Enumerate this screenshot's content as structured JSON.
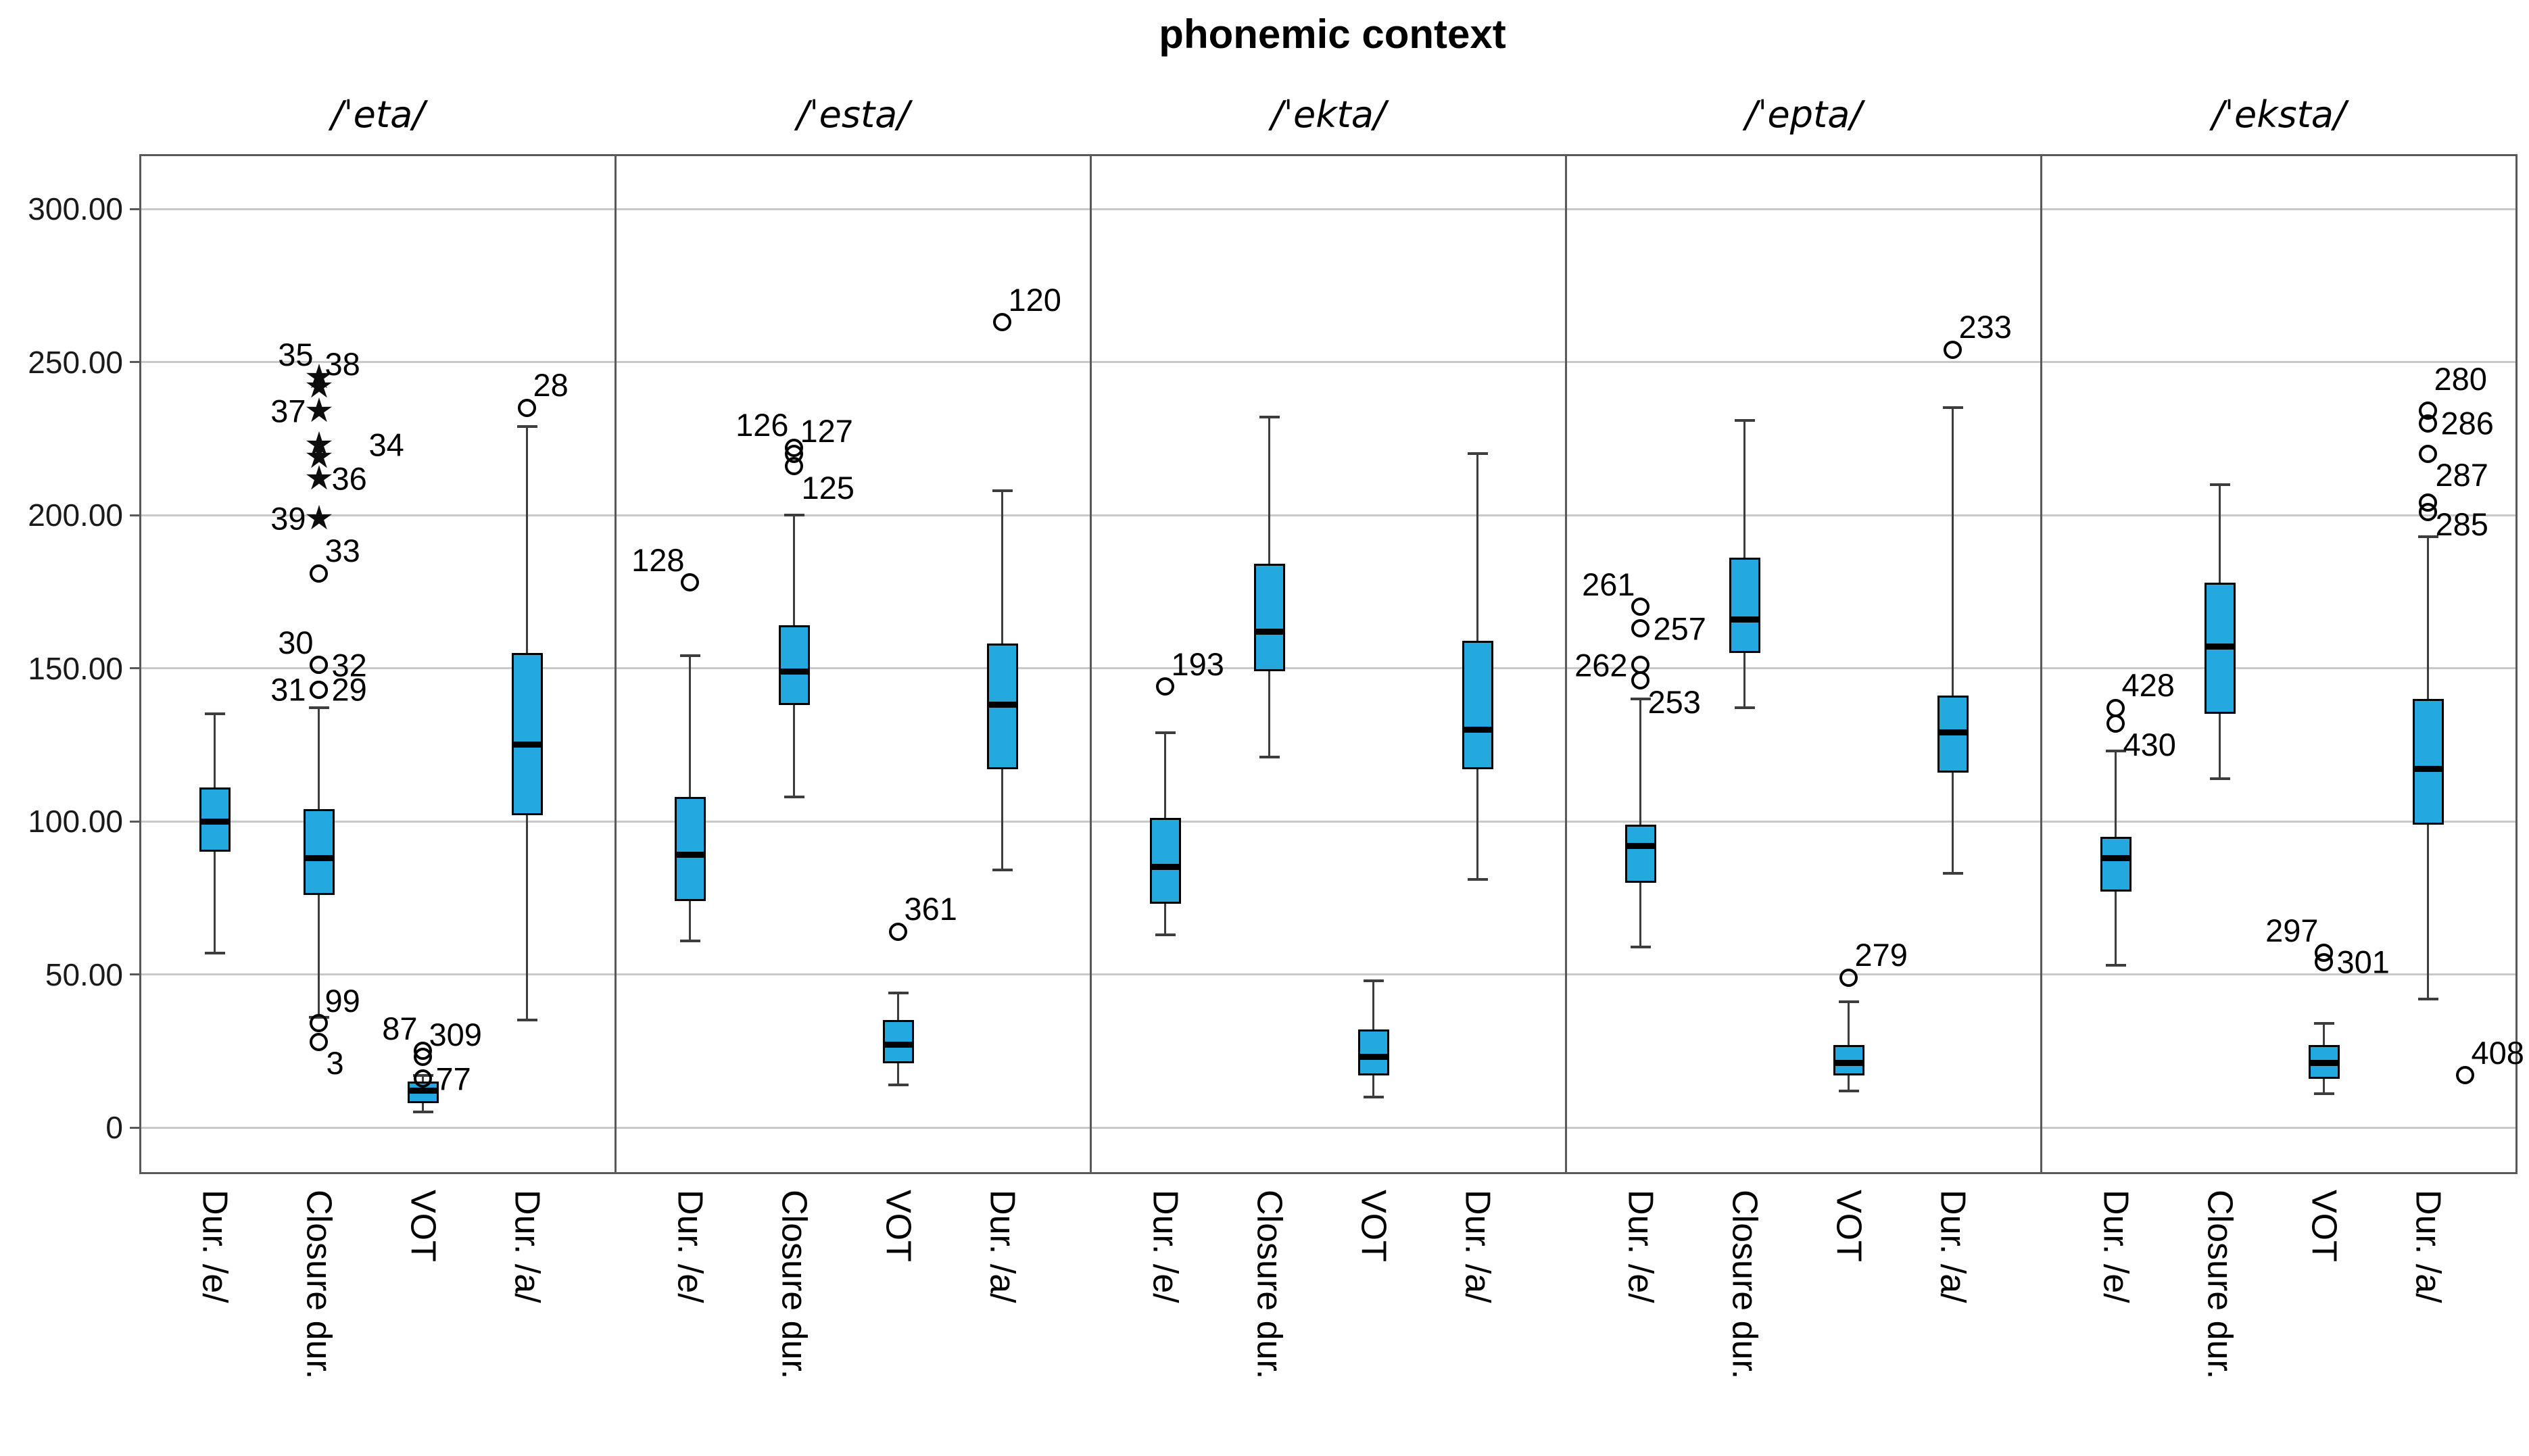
{
  "title": "phonemic context",
  "colors": {
    "box_fill": "#23A8E0",
    "box_border": "#000000",
    "median": "#000000",
    "whisker": "#3d3d3d",
    "gridline": "#c9c9c9",
    "panel_border": "#595959",
    "text": "#000000"
  },
  "chart_data": {
    "type": "boxplot",
    "title": "phonemic context",
    "subtitle": "",
    "legend_position": "none",
    "grid": "horizontal",
    "ylim": [
      -15,
      318
    ],
    "y_axis": {
      "tick_labels": [
        "300.00",
        "250.00",
        "200.00",
        "150.00",
        "100.00",
        "50.00",
        "0"
      ],
      "tick_values": [
        300,
        250,
        200,
        150,
        100,
        50,
        0
      ]
    },
    "categories": [
      "Dur. /e/",
      "Closure dur.",
      "VOT",
      "Dur. /a/"
    ],
    "panels": [
      {
        "name": "/ˈeta/",
        "boxes": [
          {
            "category": "Dur. /e/",
            "low": 57,
            "q1": 90,
            "median": 100,
            "q3": 111,
            "high": 135,
            "outliers": []
          },
          {
            "category": "Closure dur.",
            "low": 36,
            "q1": 76,
            "median": 88,
            "q3": 104,
            "high": 137,
            "outliers": [
              {
                "value": 245,
                "label": "35",
                "marker": "star",
                "pos": "al"
              },
              {
                "value": 242,
                "label": "38",
                "marker": "star",
                "pos": "ar"
              },
              {
                "value": 234,
                "label": "37",
                "marker": "star",
                "pos": "l"
              },
              {
                "value": 223,
                "label": "34",
                "marker": "star",
                "pos": "r",
                "dx_label": 55
              },
              {
                "value": 219,
                "label": "",
                "marker": "star",
                "pos": "r"
              },
              {
                "value": 212,
                "label": "36",
                "marker": "star",
                "pos": "r"
              },
              {
                "value": 199,
                "label": "39",
                "marker": "star",
                "pos": "l"
              },
              {
                "value": 181,
                "label": "33",
                "marker": "circle",
                "pos": "ar"
              },
              {
                "value": 151,
                "label": "30",
                "marker": "circle",
                "pos": "al"
              },
              {
                "value": 151,
                "label": "32",
                "marker": "circle",
                "pos": "r"
              },
              {
                "value": 143,
                "label": "31",
                "marker": "circle",
                "pos": "l"
              },
              {
                "value": 143,
                "label": "29",
                "marker": "circle",
                "pos": "r"
              },
              {
                "value": 34,
                "label": "99",
                "marker": "circle",
                "pos": "ar"
              },
              {
                "value": 28,
                "label": "3",
                "marker": "circle",
                "pos": "br"
              }
            ]
          },
          {
            "category": "VOT",
            "low": 5,
            "q1": 8,
            "median": 12,
            "q3": 15,
            "high": 17,
            "outliers": [
              {
                "value": 25,
                "label": "87",
                "marker": "circle",
                "pos": "al"
              },
              {
                "value": 23,
                "label": "309",
                "marker": "circle",
                "pos": "ar"
              },
              {
                "value": 16,
                "label": "77",
                "marker": "circle",
                "pos": "r"
              }
            ]
          },
          {
            "category": "Dur. /a/",
            "low": 35,
            "q1": 102,
            "median": 125,
            "q3": 155,
            "high": 229,
            "outliers": [
              {
                "value": 235,
                "label": "28",
                "marker": "circle",
                "pos": "ar"
              }
            ]
          }
        ]
      },
      {
        "name": "/ˈesta/",
        "boxes": [
          {
            "category": "Dur. /e/",
            "low": 61,
            "q1": 74,
            "median": 89,
            "q3": 108,
            "high": 154,
            "outliers": [
              {
                "value": 178,
                "label": "128",
                "marker": "circle",
                "pos": "al"
              }
            ]
          },
          {
            "category": "Closure dur.",
            "low": 108,
            "q1": 138,
            "median": 149,
            "q3": 164,
            "high": 200,
            "outliers": [
              {
                "value": 222,
                "label": "126",
                "marker": "circle",
                "pos": "al"
              },
              {
                "value": 220,
                "label": "127",
                "marker": "circle",
                "pos": "ar"
              },
              {
                "value": 216,
                "label": "125",
                "marker": "circle",
                "pos": "br"
              }
            ]
          },
          {
            "category": "VOT",
            "low": 14,
            "q1": 21,
            "median": 27,
            "q3": 35,
            "high": 44,
            "outliers": [
              {
                "value": 64,
                "label": "361",
                "marker": "circle",
                "pos": "ar"
              }
            ]
          },
          {
            "category": "Dur. /a/",
            "low": 84,
            "q1": 117,
            "median": 138,
            "q3": 158,
            "high": 208,
            "outliers": [
              {
                "value": 263,
                "label": "120",
                "marker": "circle",
                "pos": "ar"
              }
            ]
          }
        ]
      },
      {
        "name": "/ˈekta/",
        "boxes": [
          {
            "category": "Dur. /e/",
            "low": 63,
            "q1": 73,
            "median": 85,
            "q3": 101,
            "high": 129,
            "outliers": [
              {
                "value": 144,
                "label": "193",
                "marker": "circle",
                "pos": "ar"
              }
            ]
          },
          {
            "category": "Closure dur.",
            "low": 121,
            "q1": 149,
            "median": 162,
            "q3": 184,
            "high": 232,
            "outliers": []
          },
          {
            "category": "VOT",
            "low": 10,
            "q1": 17,
            "median": 23,
            "q3": 32,
            "high": 48,
            "outliers": []
          },
          {
            "category": "Dur. /a/",
            "low": 81,
            "q1": 117,
            "median": 130,
            "q3": 159,
            "high": 220,
            "outliers": []
          }
        ]
      },
      {
        "name": "/ˈepta/",
        "boxes": [
          {
            "category": "Dur. /e/",
            "low": 59,
            "q1": 80,
            "median": 92,
            "q3": 99,
            "high": 140,
            "outliers": [
              {
                "value": 170,
                "label": "261",
                "marker": "circle",
                "pos": "al"
              },
              {
                "value": 163,
                "label": "257",
                "marker": "circle",
                "pos": "r"
              },
              {
                "value": 151,
                "label": "262",
                "marker": "circle",
                "pos": "l"
              },
              {
                "value": 146,
                "label": "253",
                "marker": "circle",
                "pos": "br"
              }
            ]
          },
          {
            "category": "Closure dur.",
            "low": 137,
            "q1": 155,
            "median": 166,
            "q3": 186,
            "high": 231,
            "outliers": []
          },
          {
            "category": "VOT",
            "low": 12,
            "q1": 17,
            "median": 21,
            "q3": 27,
            "high": 41,
            "outliers": [
              {
                "value": 49,
                "label": "279",
                "marker": "circle",
                "pos": "ar"
              }
            ]
          },
          {
            "category": "Dur. /a/",
            "low": 83,
            "q1": 116,
            "median": 129,
            "q3": 141,
            "high": 235,
            "outliers": [
              {
                "value": 254,
                "label": "233",
                "marker": "circle",
                "pos": "ar"
              }
            ]
          }
        ]
      },
      {
        "name": "/ˈeksta/",
        "boxes": [
          {
            "category": "Dur. /e/",
            "low": 53,
            "q1": 77,
            "median": 88,
            "q3": 95,
            "high": 123,
            "outliers": [
              {
                "value": 137,
                "label": "428",
                "marker": "circle",
                "pos": "ar"
              },
              {
                "value": 132,
                "label": "430",
                "marker": "circle",
                "pos": "br"
              }
            ]
          },
          {
            "category": "Closure dur.",
            "low": 114,
            "q1": 135,
            "median": 157,
            "q3": 178,
            "high": 210,
            "outliers": []
          },
          {
            "category": "VOT",
            "low": 11,
            "q1": 16,
            "median": 21,
            "q3": 27,
            "high": 34,
            "outliers": [
              {
                "value": 57,
                "label": "297",
                "marker": "circle",
                "pos": "al"
              },
              {
                "value": 54,
                "label": "301",
                "marker": "circle",
                "pos": "r"
              }
            ]
          },
          {
            "category": "Dur. /a/",
            "low": 42,
            "q1": 99,
            "median": 117,
            "q3": 140,
            "high": 193,
            "outliers": [
              {
                "value": 234,
                "label": "280",
                "marker": "circle",
                "pos": "ar",
                "dy_label": -14
              },
              {
                "value": 230,
                "label": "286",
                "marker": "circle",
                "pos": "r"
              },
              {
                "value": 220,
                "label": "287",
                "marker": "circle",
                "pos": "br"
              },
              {
                "value": 204,
                "label": "285",
                "marker": "circle",
                "pos": "br"
              },
              {
                "value": 201,
                "label": "",
                "marker": "circle",
                "pos": "r"
              },
              {
                "value": 17,
                "label": "408",
                "marker": "circle",
                "pos": "ar",
                "dx_marker": 55
              }
            ]
          }
        ]
      }
    ]
  }
}
